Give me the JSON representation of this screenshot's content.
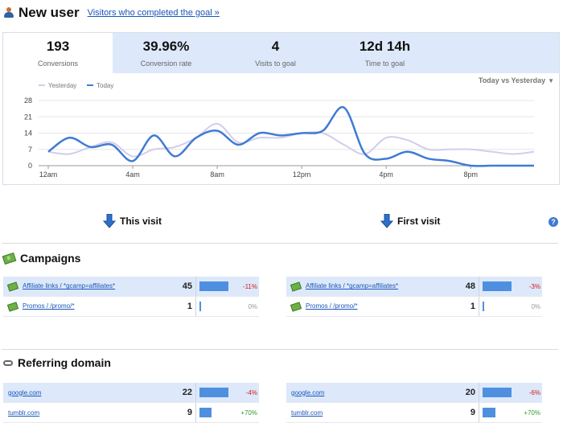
{
  "header": {
    "title": "New user",
    "goal_link": "Visitors who completed the goal »"
  },
  "metrics": [
    {
      "value": "193",
      "label": "Conversions"
    },
    {
      "value": "39.96%",
      "label": "Conversion rate"
    },
    {
      "value": "4",
      "label": "Visits to goal"
    },
    {
      "value": "12d 14h",
      "label": "Time to goal"
    }
  ],
  "compare_label": "Today vs Yesterday",
  "chart_data": {
    "type": "line",
    "legend": [
      "Yesterday",
      "Today"
    ],
    "x_ticks": [
      "12am",
      "4am",
      "8am",
      "12pm",
      "4pm",
      "8pm"
    ],
    "y_ticks": [
      0,
      7,
      14,
      21,
      28
    ],
    "ylim": [
      0,
      28
    ],
    "x": [
      0,
      1,
      2,
      3,
      4,
      5,
      6,
      7,
      8,
      9,
      10,
      11,
      12,
      13,
      14,
      15,
      16,
      17,
      18,
      19,
      20,
      21,
      22,
      23
    ],
    "series": [
      {
        "name": "Yesterday",
        "color": "#d3cdeb",
        "values": [
          6,
          5,
          8,
          10,
          4,
          7,
          8,
          12,
          18,
          10,
          12,
          12,
          14,
          14,
          9,
          5,
          12,
          11,
          7,
          7,
          7,
          6,
          5,
          6
        ]
      },
      {
        "name": "Today",
        "color": "#3f7bd3",
        "values": [
          6,
          12,
          8,
          9,
          2,
          13,
          4,
          12,
          15,
          9,
          14,
          13,
          14,
          15,
          25,
          5,
          3,
          6,
          3,
          2,
          0,
          0,
          0,
          0
        ]
      }
    ],
    "legend_position": "top-left",
    "grid": true
  },
  "this_visit": {
    "label": "This visit"
  },
  "first_visit": {
    "label": "First visit"
  },
  "help_label": "?",
  "campaigns": {
    "title": "Campaigns",
    "this_visit": [
      {
        "name": "Affiliate links / *gcamp=affiliates*",
        "count": "45",
        "bar": 0.9,
        "pct": "-11%",
        "trend": "neg"
      },
      {
        "name": "Promos / /promo/*",
        "count": "1",
        "bar": 0.03,
        "pct": "0%",
        "trend": "zero"
      }
    ],
    "first_visit": [
      {
        "name": "Affiliate links / *gcamp=affiliates*",
        "count": "48",
        "bar": 0.9,
        "pct": "-3%",
        "trend": "neg"
      },
      {
        "name": "Promos / /promo/*",
        "count": "1",
        "bar": 0.03,
        "pct": "0%",
        "trend": "zero"
      }
    ]
  },
  "referring": {
    "title": "Referring domain",
    "this_visit": [
      {
        "name": "google.com",
        "count": "22",
        "bar": 0.9,
        "pct": "-4%",
        "trend": "neg"
      },
      {
        "name": "tumblr.com",
        "count": "9",
        "bar": 0.37,
        "pct": "+70%",
        "trend": "pos"
      }
    ],
    "first_visit": [
      {
        "name": "google.com",
        "count": "20",
        "bar": 0.9,
        "pct": "-6%",
        "trend": "neg"
      },
      {
        "name": "tumblr.com",
        "count": "9",
        "bar": 0.4,
        "pct": "+70%",
        "trend": "pos"
      }
    ]
  }
}
